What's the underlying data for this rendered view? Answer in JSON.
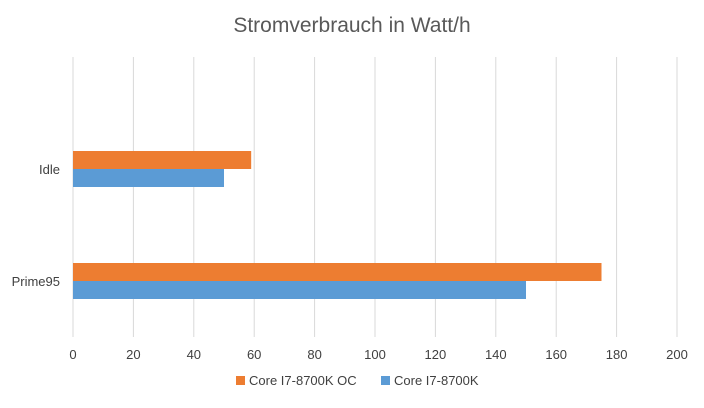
{
  "chart_data": {
    "type": "bar",
    "orientation": "horizontal",
    "title": "Stromverbrauch in Watt/h",
    "categories": [
      "Idle",
      "Prime95"
    ],
    "series": [
      {
        "name": "Core I7-8700K OC",
        "color": "#ed7d31",
        "values": [
          59,
          175
        ]
      },
      {
        "name": "Core I7-8700K",
        "color": "#5b9bd5",
        "values": [
          50,
          150
        ]
      }
    ],
    "xlim": [
      0,
      200
    ],
    "x_ticks": [
      "0",
      "20",
      "40",
      "60",
      "80",
      "100",
      "120",
      "140",
      "160",
      "180",
      "200"
    ],
    "grid": "vertical",
    "legend_position": "bottom"
  }
}
